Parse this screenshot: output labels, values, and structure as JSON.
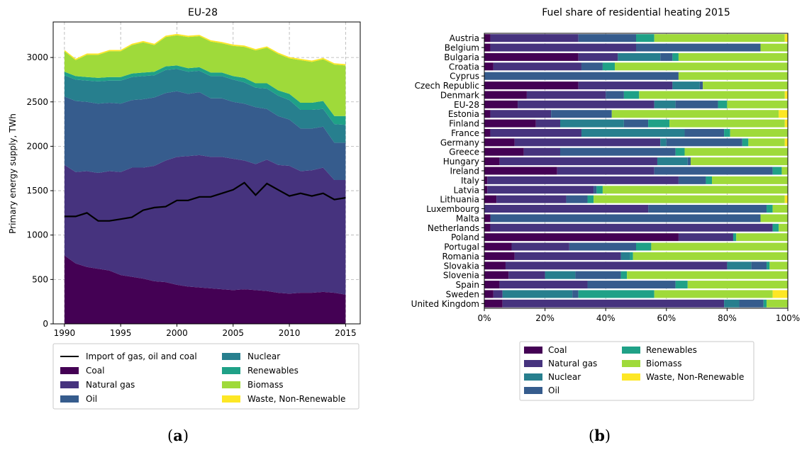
{
  "colors": {
    "Coal": "#440154",
    "Natural gas": "#46337e",
    "Oil": "#365c8d",
    "Nuclear": "#277f8e",
    "Renewables": "#1fa187",
    "Biomass": "#4ac16d",
    "Biomass_b": "#9fda3a",
    "Waste, Non-Renewable": "#fde725",
    "import_line": "#000000"
  },
  "panel_a_label": "a",
  "panel_b_label": "b",
  "chart_data": [
    {
      "type": "area",
      "title": "EU-28",
      "xlabel": "",
      "ylabel": "Primary energy supply, TWh",
      "xlim": [
        1989,
        2016.3
      ],
      "ylim": [
        0,
        3400
      ],
      "xticks": [
        1990,
        1995,
        2000,
        2005,
        2010,
        2015
      ],
      "yticks": [
        0,
        500,
        1000,
        1500,
        2000,
        2500,
        3000
      ],
      "grid": true,
      "legend_position": "below",
      "legend": [
        "Import of gas, oil and coal",
        "Coal",
        "Natural gas",
        "Oil",
        "Nuclear",
        "Renewables",
        "Biomass",
        "Waste, Non-Renewable"
      ],
      "x": [
        1990,
        1991,
        1992,
        1993,
        1994,
        1995,
        1996,
        1997,
        1998,
        1999,
        2000,
        2001,
        2002,
        2003,
        2004,
        2005,
        2006,
        2007,
        2008,
        2009,
        2010,
        2011,
        2012,
        2013,
        2014,
        2015
      ],
      "series": [
        {
          "name": "Coal",
          "values": [
            770,
            680,
            640,
            620,
            600,
            550,
            530,
            510,
            480,
            470,
            440,
            420,
            410,
            400,
            390,
            380,
            390,
            380,
            370,
            350,
            340,
            350,
            350,
            360,
            350,
            330
          ]
        },
        {
          "name": "Natural gas",
          "values": [
            1020,
            1030,
            1080,
            1080,
            1120,
            1160,
            1230,
            1250,
            1300,
            1370,
            1440,
            1470,
            1490,
            1480,
            1490,
            1480,
            1450,
            1420,
            1480,
            1440,
            1440,
            1370,
            1380,
            1400,
            1270,
            1290
          ]
        },
        {
          "name": "Oil",
          "values": [
            770,
            800,
            780,
            780,
            770,
            770,
            760,
            770,
            770,
            760,
            740,
            700,
            710,
            660,
            660,
            640,
            640,
            640,
            570,
            550,
            520,
            480,
            470,
            460,
            420,
            420
          ]
        },
        {
          "name": "Nuclear",
          "values": [
            240,
            240,
            240,
            250,
            250,
            260,
            260,
            260,
            250,
            260,
            250,
            250,
            240,
            250,
            250,
            250,
            240,
            220,
            230,
            230,
            220,
            210,
            210,
            200,
            210,
            200
          ]
        },
        {
          "name": "Renewables",
          "values": [
            40,
            40,
            40,
            40,
            40,
            40,
            40,
            40,
            40,
            40,
            40,
            40,
            40,
            40,
            40,
            40,
            50,
            50,
            60,
            60,
            70,
            80,
            80,
            90,
            90,
            100
          ]
        },
        {
          "name": "Biomass",
          "values": [
            230,
            180,
            250,
            260,
            290,
            290,
            320,
            340,
            300,
            330,
            340,
            350,
            350,
            350,
            330,
            340,
            350,
            370,
            400,
            410,
            400,
            480,
            460,
            470,
            580,
            570
          ]
        },
        {
          "name": "Waste, Non-Renewable",
          "values": [
            15,
            15,
            15,
            15,
            15,
            15,
            15,
            15,
            15,
            15,
            15,
            15,
            15,
            15,
            15,
            15,
            15,
            15,
            15,
            15,
            15,
            15,
            15,
            15,
            15,
            15
          ]
        }
      ],
      "line": {
        "name": "Import of gas, oil and coal",
        "values": [
          1210,
          1210,
          1250,
          1160,
          1160,
          1180,
          1200,
          1280,
          1310,
          1320,
          1390,
          1390,
          1430,
          1430,
          1470,
          1510,
          1590,
          1450,
          1580,
          1510,
          1440,
          1470,
          1440,
          1470,
          1400,
          1420
        ]
      }
    },
    {
      "type": "bar",
      "orientation": "horizontal",
      "stacked": true,
      "title": "Fuel share of residential heating 2015",
      "xlim": [
        0,
        100
      ],
      "xticks": [
        "0%",
        "20%",
        "40%",
        "60%",
        "80%",
        "100%"
      ],
      "legend_position": "below",
      "legend": [
        "Coal",
        "Natural gas",
        "Nuclear",
        "Oil",
        "Renewables",
        "Biomass",
        "Waste, Non-Renewable"
      ],
      "series_names": [
        "Coal",
        "Natural gas",
        "Oil",
        "Nuclear",
        "Renewables",
        "Biomass",
        "Waste, Non-Renewable"
      ],
      "categories": [
        "Austria",
        "Belgium",
        "Bulgaria",
        "Croatia",
        "Cyprus",
        "Czech Republic",
        "Denmark",
        "EU-28",
        "Estonia",
        "Finland",
        "France",
        "Germany",
        "Greece",
        "Hungary",
        "Ireland",
        "Italy",
        "Latvia",
        "Lithuania",
        "Luxembourg",
        "Malta",
        "Netherlands",
        "Poland",
        "Portugal",
        "Romania",
        "Slovakia",
        "Slovenia",
        "Spain",
        "Sweden",
        "United Kingdom"
      ],
      "values": [
        [
          2,
          29,
          0,
          19,
          6,
          43,
          1
        ],
        [
          2,
          48,
          0,
          41,
          0,
          9,
          0
        ],
        [
          31,
          13,
          14,
          4,
          2,
          36,
          0
        ],
        [
          3,
          29,
          0,
          7,
          4,
          57,
          0
        ],
        [
          0,
          0,
          0,
          64,
          0,
          36,
          0
        ],
        [
          31,
          31,
          9,
          1,
          0,
          28,
          0
        ],
        [
          14,
          26,
          0,
          6,
          5,
          48,
          1
        ],
        [
          11,
          45,
          7,
          14,
          3,
          20,
          0
        ],
        [
          2,
          20,
          0,
          20,
          0,
          55,
          3
        ],
        [
          17,
          8,
          21,
          8,
          7,
          38,
          1
        ],
        [
          2,
          30,
          34,
          13,
          2,
          19,
          0
        ],
        [
          10,
          48,
          2,
          25,
          2,
          12,
          1
        ],
        [
          13,
          12,
          0,
          38,
          3,
          34,
          0
        ],
        [
          5,
          52,
          10,
          1,
          0,
          32,
          0
        ],
        [
          24,
          32,
          0,
          39,
          3,
          2,
          0
        ],
        [
          1,
          63,
          0,
          9,
          2,
          25,
          0
        ],
        [
          1,
          35,
          0,
          1,
          2,
          61,
          0
        ],
        [
          4,
          23,
          0,
          7,
          2,
          63,
          1
        ],
        [
          0,
          54,
          0,
          39,
          2,
          5,
          0
        ],
        [
          2,
          0,
          0,
          89,
          0,
          9,
          0
        ],
        [
          2,
          93,
          0,
          0,
          2,
          3,
          0
        ],
        [
          64,
          18,
          0,
          0,
          1,
          17,
          0
        ],
        [
          9,
          19,
          0,
          22,
          5,
          45,
          0
        ],
        [
          10,
          35,
          3,
          0,
          1,
          51,
          0
        ],
        [
          7,
          73,
          8,
          5,
          1,
          6,
          0
        ],
        [
          8,
          12,
          10,
          15,
          2,
          53,
          0
        ],
        [
          5,
          29,
          0,
          29,
          4,
          33,
          0
        ],
        [
          3,
          3,
          23,
          2,
          25,
          39,
          5
        ],
        [
          6,
          73,
          5,
          8,
          1,
          7,
          0
        ]
      ]
    }
  ]
}
